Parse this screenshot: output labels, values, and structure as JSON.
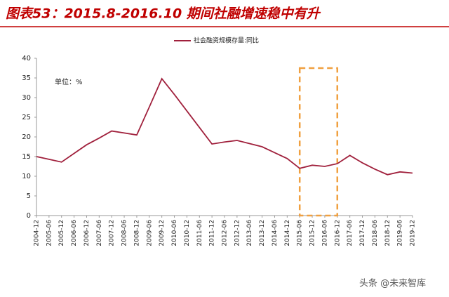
{
  "chart_data": {
    "type": "line",
    "title": "图表53：2015.8-2016.10 期间社融增速稳中有升",
    "unit_note": "单位：%",
    "watermark": "头条 @未来智库",
    "categories": [
      "2004-12",
      "2005-06",
      "2005-12",
      "2006-06",
      "2006-12",
      "2007-06",
      "2007-12",
      "2008-06",
      "2008-12",
      "2009-06",
      "2009-12",
      "2010-06",
      "2010-12",
      "2011-06",
      "2011-12",
      "2012-06",
      "2012-12",
      "2013-06",
      "2013-12",
      "2014-06",
      "2014-12",
      "2015-06",
      "2015-12",
      "2016-06",
      "2016-12",
      "2017-06",
      "2017-12",
      "2018-06",
      "2018-12",
      "2019-06",
      "2019-12"
    ],
    "series": [
      {
        "name": "社会融资规模存量:同比",
        "color": "#a0203c",
        "values": [
          15,
          14.3,
          13.6,
          15.8,
          18,
          19.7,
          21.5,
          21,
          20.5,
          27.6,
          34.8,
          30.8,
          26.6,
          22.4,
          18.2,
          18.7,
          19.1,
          18.3,
          17.5,
          16,
          14.5,
          12,
          12.8,
          12.5,
          13.2,
          15.3,
          13.4,
          11.8,
          10.4,
          11.1,
          10.8
        ]
      }
    ],
    "highlight": {
      "x": [
        "2015-06",
        "2016-12"
      ],
      "y": [
        0,
        37.5
      ],
      "color": "#f0a040"
    },
    "ylim": [
      0,
      40
    ],
    "yticks": [
      0,
      5,
      10,
      15,
      20,
      25,
      30,
      35,
      40
    ],
    "grid": false
  }
}
